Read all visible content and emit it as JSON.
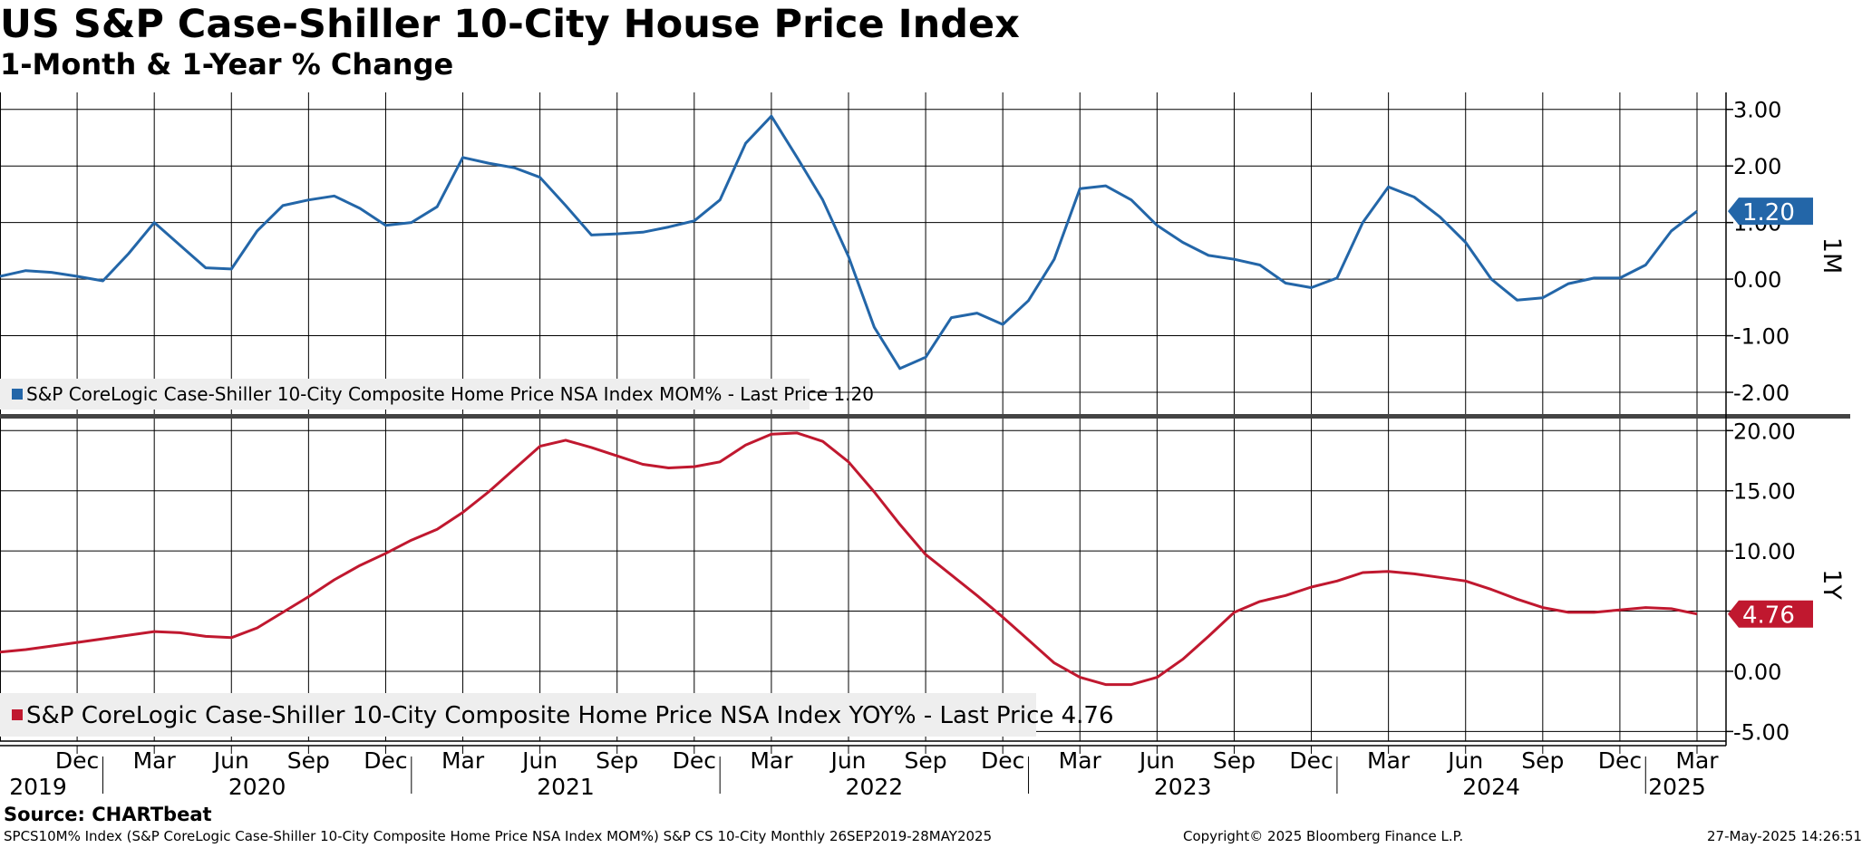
{
  "header": {
    "title": "US S&P Case-Shiller 10-City House Price Index",
    "subtitle": "1-Month & 1-Year % Change"
  },
  "footer": {
    "source": "Source: CHARTbeat",
    "index_desc": "SPCS10M% Index (S&P CoreLogic Case-Shiller 10-City Composite Home Price NSA Index MOM%) S&P CS 10-City  Monthly 26SEP2019-28MAY2025",
    "copyright": "Copyright© 2025 Bloomberg Finance L.P.",
    "timestamp": "27-May-2025 14:26:51"
  },
  "colors": {
    "mom": "#2366a8",
    "yoy": "#c0182f",
    "grid": "#000000",
    "legend_bg": "#eeeeee"
  },
  "chart_data": [
    {
      "type": "line",
      "panel_label": "1M",
      "legend": "S&P CoreLogic Case-Shiller 10-City Composite Home Price NSA Index MOM% - Last Price 1.20",
      "last_price": "1.20",
      "ylim": [
        -2.4,
        3.3
      ],
      "yticks": [
        3.0,
        2.0,
        1.0,
        0.0,
        -1.0,
        -2.0
      ],
      "ytick_labels": [
        "3.00",
        "2.00",
        "1.00",
        "0.00",
        "-1.00",
        "-2.00"
      ],
      "series": [
        {
          "start": "2019-09",
          "end": "2025-03",
          "values": [
            0.05,
            0.15,
            0.12,
            0.05,
            -0.03,
            0.45,
            1.0,
            0.6,
            0.2,
            0.18,
            0.85,
            1.3,
            1.4,
            1.47,
            1.25,
            0.95,
            1.0,
            1.28,
            2.15,
            2.05,
            1.97,
            1.8,
            1.3,
            0.78,
            0.8,
            0.83,
            0.92,
            1.03,
            1.4,
            2.4,
            2.88,
            2.15,
            1.4,
            0.4,
            -0.85,
            -1.58,
            -1.38,
            -0.68,
            -0.6,
            -0.8,
            -0.38,
            0.35,
            1.6,
            1.65,
            1.4,
            0.95,
            0.65,
            0.42,
            0.35,
            0.25,
            -0.07,
            -0.15,
            0.02,
            1.0,
            1.63,
            1.45,
            1.1,
            0.65,
            0.0,
            -0.37,
            -0.33,
            -0.08,
            0.02,
            0.02,
            0.25,
            0.85,
            1.2
          ]
        }
      ]
    },
    {
      "type": "line",
      "panel_label": "1Y",
      "legend": "S&P CoreLogic Case-Shiller 10-City Composite Home Price NSA Index YOY% - Last Price 4.76",
      "last_price": "4.76",
      "ylim": [
        -5.8,
        21.0
      ],
      "yticks": [
        20.0,
        15.0,
        10.0,
        5.0,
        0.0,
        -5.0
      ],
      "ytick_labels": [
        "20.00",
        "15.00",
        "10.00",
        "",
        "0.00",
        "-5.00"
      ],
      "series": [
        {
          "start": "2019-09",
          "end": "2025-03",
          "values": [
            1.6,
            1.8,
            2.1,
            2.4,
            2.7,
            3.0,
            3.3,
            3.2,
            2.9,
            2.8,
            3.6,
            4.9,
            6.2,
            7.6,
            8.8,
            9.8,
            10.9,
            11.8,
            13.2,
            14.9,
            16.8,
            18.7,
            19.2,
            18.6,
            17.9,
            17.2,
            16.9,
            17.0,
            17.4,
            18.8,
            19.7,
            19.8,
            19.1,
            17.4,
            14.9,
            12.2,
            9.7,
            8.0,
            6.3,
            4.5,
            2.6,
            0.7,
            -0.5,
            -1.1,
            -1.1,
            -0.5,
            1.0,
            2.9,
            4.9,
            5.8,
            6.3,
            7.0,
            7.5,
            8.2,
            8.3,
            8.1,
            7.8,
            7.5,
            6.8,
            6.0,
            5.3,
            4.9,
            4.9,
            5.1,
            5.3,
            5.2,
            4.76
          ]
        }
      ]
    }
  ],
  "x_axis": {
    "month_labels": [
      "Dec",
      "Mar",
      "Jun",
      "Sep",
      "Dec",
      "Mar",
      "Jun",
      "Sep",
      "Dec",
      "Mar",
      "Jun",
      "Sep",
      "Dec",
      "Mar",
      "Jun",
      "Sep",
      "Dec",
      "Mar",
      "Jun",
      "Sep",
      "Dec",
      "Mar"
    ],
    "year_labels": [
      "2019",
      "2020",
      "2021",
      "2022",
      "2023",
      "2024",
      "2025"
    ]
  }
}
